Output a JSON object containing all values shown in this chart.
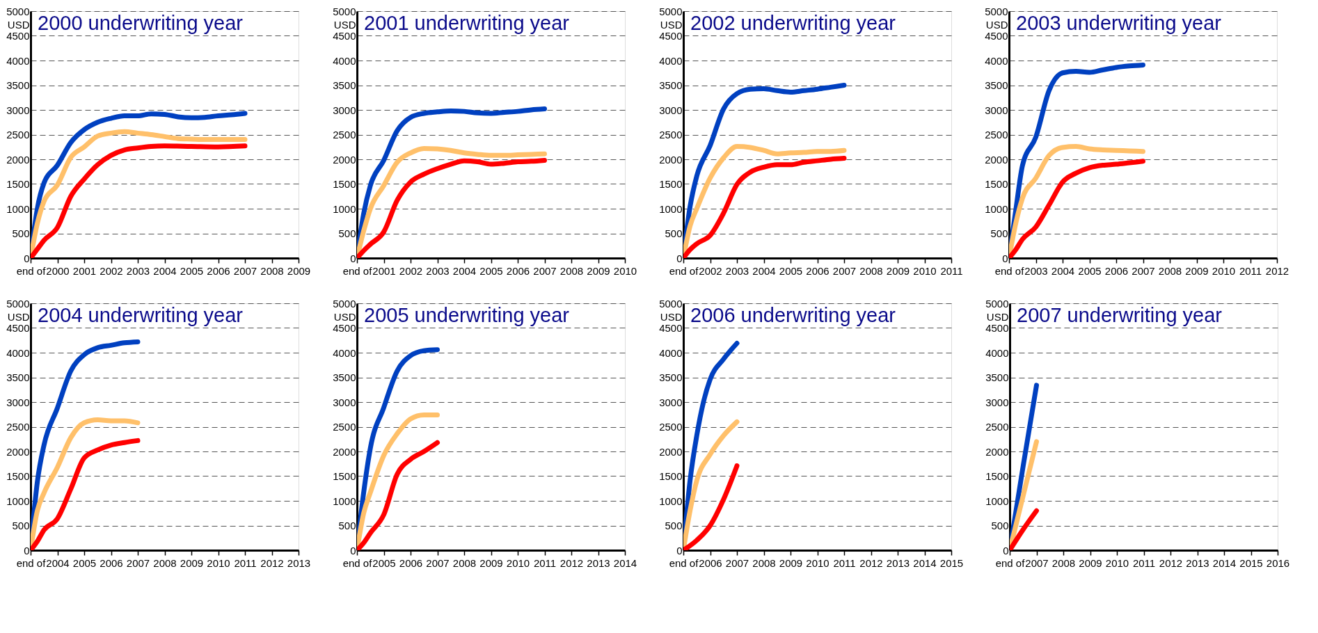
{
  "chart_data": [
    {
      "type": "line",
      "title": "2000 underwriting year",
      "ylabel": "USD",
      "xlim": [
        1999,
        2009
      ],
      "xticks": [
        {
          "value": 1999,
          "label": "end of"
        },
        2000,
        2001,
        2002,
        2003,
        2004,
        2005,
        2006,
        2007,
        2008,
        2009
      ],
      "ylim": [
        0,
        5000
      ],
      "yticks": [
        0,
        500,
        1000,
        1500,
        2000,
        2500,
        3000,
        3500,
        4000,
        4500,
        5000
      ],
      "grid": "y",
      "series": [
        {
          "color": "#0040c0",
          "x": [
            1999,
            1999.25,
            1999.5,
            2000,
            2000.5,
            2001,
            2001.5,
            2002,
            2002.5,
            2003,
            2003.5,
            2004,
            2004.5,
            2005,
            2005.5,
            2006,
            2006.5,
            2007
          ],
          "values": [
            0,
            1000,
            1520,
            1880,
            2340,
            2600,
            2750,
            2830,
            2880,
            2880,
            2920,
            2910,
            2860,
            2840,
            2850,
            2880,
            2900,
            2930
          ]
        },
        {
          "color": "#ffc06a",
          "x": [
            1999,
            1999.25,
            1999.5,
            2000,
            2000.5,
            2001,
            2001.5,
            2002,
            2002.5,
            2003,
            2003.5,
            2004,
            2004.5,
            2005,
            2005.5,
            2006,
            2006.5,
            2007
          ],
          "values": [
            0,
            700,
            1150,
            1480,
            2040,
            2250,
            2470,
            2530,
            2560,
            2530,
            2500,
            2460,
            2420,
            2410,
            2400,
            2400,
            2400,
            2400
          ]
        },
        {
          "color": "#ff0000",
          "x": [
            1999,
            1999.25,
            1999.5,
            2000,
            2000.5,
            2001,
            2001.5,
            2002,
            2002.5,
            2003,
            2003.5,
            2004,
            2005,
            2006,
            2007
          ],
          "values": [
            0,
            180,
            360,
            620,
            1250,
            1600,
            1890,
            2080,
            2190,
            2230,
            2260,
            2270,
            2260,
            2250,
            2270
          ]
        }
      ]
    },
    {
      "type": "line",
      "title": "2001 underwriting year",
      "ylabel": "USD",
      "xlim": [
        2000,
        2010
      ],
      "xticks": [
        {
          "value": 2000,
          "label": "end of"
        },
        2001,
        2002,
        2003,
        2004,
        2005,
        2006,
        2007,
        2008,
        2009,
        2010
      ],
      "ylim": [
        0,
        5000
      ],
      "yticks": [
        0,
        500,
        1000,
        1500,
        2000,
        2500,
        3000,
        3500,
        4000,
        4500,
        5000
      ],
      "grid": "y",
      "series": [
        {
          "color": "#0040c0",
          "x": [
            2000,
            2000.25,
            2000.5,
            2001,
            2001.5,
            2002,
            2002.5,
            2003,
            2003.5,
            2004,
            2004.5,
            2005,
            2005.5,
            2006,
            2006.5,
            2007
          ],
          "values": [
            0,
            900,
            1470,
            1980,
            2580,
            2850,
            2930,
            2960,
            2980,
            2970,
            2940,
            2930,
            2950,
            2970,
            3000,
            3020
          ]
        },
        {
          "color": "#ffc06a",
          "x": [
            2000,
            2000.25,
            2000.5,
            2001,
            2001.5,
            2002,
            2002.5,
            2003,
            2003.5,
            2004,
            2004.5,
            2005,
            2005.5,
            2006,
            2006.5,
            2007
          ],
          "values": [
            0,
            550,
            1000,
            1470,
            1940,
            2130,
            2220,
            2210,
            2180,
            2130,
            2100,
            2080,
            2080,
            2090,
            2100,
            2110
          ]
        },
        {
          "color": "#ff0000",
          "x": [
            2000,
            2000.25,
            2000.5,
            2001,
            2001.5,
            2002,
            2002.5,
            2003,
            2003.5,
            2004,
            2004.5,
            2005,
            2005.5,
            2006,
            2006.5,
            2007
          ],
          "values": [
            0,
            150,
            280,
            530,
            1170,
            1540,
            1700,
            1810,
            1900,
            1970,
            1950,
            1900,
            1920,
            1950,
            1960,
            1980
          ]
        }
      ]
    },
    {
      "type": "line",
      "title": "2002 underwriting year",
      "ylabel": "USD",
      "xlim": [
        2001,
        2011
      ],
      "xticks": [
        {
          "value": 2001,
          "label": "end of"
        },
        2002,
        2003,
        2004,
        2005,
        2006,
        2007,
        2008,
        2009,
        2010,
        2011
      ],
      "ylim": [
        0,
        5000
      ],
      "yticks": [
        0,
        500,
        1000,
        1500,
        2000,
        2500,
        3000,
        3500,
        4000,
        4500,
        5000
      ],
      "grid": "y",
      "series": [
        {
          "color": "#0040c0",
          "x": [
            2001,
            2001.25,
            2001.5,
            2002,
            2002.5,
            2003,
            2003.5,
            2004,
            2004.5,
            2005,
            2005.5,
            2006,
            2006.5,
            2007
          ],
          "values": [
            0,
            1040,
            1660,
            2280,
            3020,
            3330,
            3420,
            3430,
            3390,
            3360,
            3390,
            3420,
            3460,
            3500
          ]
        },
        {
          "color": "#ffc06a",
          "x": [
            2001,
            2001.25,
            2001.5,
            2002,
            2002.5,
            2003,
            2003.5,
            2004,
            2004.5,
            2005,
            2005.5,
            2006,
            2006.5,
            2007
          ],
          "values": [
            0,
            650,
            1000,
            1620,
            2030,
            2260,
            2240,
            2180,
            2110,
            2130,
            2140,
            2160,
            2160,
            2180
          ]
        },
        {
          "color": "#ff0000",
          "x": [
            2001,
            2001.25,
            2001.5,
            2002,
            2002.5,
            2003,
            2003.5,
            2004,
            2004.5,
            2005,
            2005.5,
            2006,
            2006.5,
            2007
          ],
          "values": [
            0,
            170,
            290,
            460,
            910,
            1490,
            1740,
            1840,
            1890,
            1890,
            1940,
            1970,
            2000,
            2020
          ]
        }
      ]
    },
    {
      "type": "line",
      "title": "2003 underwriting year",
      "ylabel": "USD",
      "xlim": [
        2002,
        2012
      ],
      "xticks": [
        {
          "value": 2002,
          "label": "end of"
        },
        2003,
        2004,
        2005,
        2006,
        2007,
        2008,
        2009,
        2010,
        2011,
        2012
      ],
      "ylim": [
        0,
        5000
      ],
      "yticks": [
        0,
        500,
        1000,
        1500,
        2000,
        2500,
        3000,
        3500,
        4000,
        4500,
        5000
      ],
      "grid": "y",
      "series": [
        {
          "color": "#0040c0",
          "x": [
            2002,
            2002.25,
            2002.5,
            2003,
            2003.5,
            2004,
            2004.5,
            2005,
            2005.5,
            2006,
            2006.5,
            2007
          ],
          "values": [
            0,
            960,
            1870,
            2450,
            3400,
            3750,
            3780,
            3760,
            3810,
            3860,
            3890,
            3910
          ]
        },
        {
          "color": "#ffc06a",
          "x": [
            2002,
            2002.25,
            2002.5,
            2003,
            2003.5,
            2004,
            2004.5,
            2005,
            2005.5,
            2006,
            2006.5,
            2007
          ],
          "values": [
            0,
            700,
            1210,
            1620,
            2080,
            2240,
            2260,
            2210,
            2190,
            2180,
            2170,
            2160
          ]
        },
        {
          "color": "#ff0000",
          "x": [
            2002,
            2002.25,
            2002.5,
            2003,
            2003.5,
            2004,
            2004.5,
            2005,
            2005.5,
            2006,
            2006.5,
            2007
          ],
          "values": [
            0,
            170,
            380,
            630,
            1080,
            1540,
            1720,
            1830,
            1880,
            1900,
            1930,
            1960
          ]
        }
      ]
    },
    {
      "type": "line",
      "title": "2004 underwriting year",
      "ylabel": "USD",
      "xlim": [
        2003,
        2013
      ],
      "xticks": [
        {
          "value": 2003,
          "label": "end of"
        },
        2004,
        2005,
        2006,
        2007,
        2008,
        2009,
        2010,
        2011,
        2012,
        2013
      ],
      "ylim": [
        0,
        5000
      ],
      "yticks": [
        0,
        500,
        1000,
        1500,
        2000,
        2500,
        3000,
        3500,
        4000,
        4500,
        5000
      ],
      "grid": "y",
      "series": [
        {
          "color": "#0040c0",
          "x": [
            2003,
            2003.25,
            2003.5,
            2004,
            2004.5,
            2005,
            2005.5,
            2006,
            2006.5,
            2007
          ],
          "values": [
            0,
            1380,
            2130,
            2880,
            3630,
            3960,
            4100,
            4150,
            4200,
            4220
          ]
        },
        {
          "color": "#ffc06a",
          "x": [
            2003,
            2003.25,
            2003.5,
            2004,
            2004.5,
            2005,
            2005.5,
            2006,
            2006.5,
            2007
          ],
          "values": [
            0,
            800,
            1160,
            1680,
            2280,
            2580,
            2640,
            2620,
            2620,
            2580
          ]
        },
        {
          "color": "#ff0000",
          "x": [
            2003,
            2003.25,
            2003.5,
            2004,
            2004.5,
            2005,
            2005.5,
            2006,
            2006.5,
            2007
          ],
          "values": [
            0,
            180,
            410,
            640,
            1240,
            1870,
            2030,
            2130,
            2180,
            2220
          ]
        }
      ]
    },
    {
      "type": "line",
      "title": "2005 underwriting year",
      "ylabel": "USD",
      "xlim": [
        2004,
        2014
      ],
      "xticks": [
        {
          "value": 2004,
          "label": "end of"
        },
        2005,
        2006,
        2007,
        2008,
        2009,
        2010,
        2011,
        2012,
        2013,
        2014
      ],
      "ylim": [
        0,
        5000
      ],
      "yticks": [
        0,
        500,
        1000,
        1500,
        2000,
        2500,
        3000,
        3500,
        4000,
        4500,
        5000
      ],
      "grid": "y",
      "series": [
        {
          "color": "#0040c0",
          "x": [
            2004,
            2004.25,
            2004.5,
            2005,
            2005.5,
            2006,
            2006.5,
            2007
          ],
          "values": [
            0,
            1170,
            2070,
            2890,
            3630,
            3940,
            4040,
            4060
          ]
        },
        {
          "color": "#ffc06a",
          "x": [
            2004,
            2004.25,
            2004.5,
            2005,
            2005.5,
            2006,
            2006.5,
            2007
          ],
          "values": [
            0,
            750,
            1170,
            1920,
            2360,
            2660,
            2740,
            2740
          ]
        },
        {
          "color": "#ff0000",
          "x": [
            2004,
            2004.25,
            2004.5,
            2005,
            2005.5,
            2006,
            2006.5,
            2007
          ],
          "values": [
            0,
            150,
            350,
            720,
            1540,
            1840,
            2000,
            2180
          ]
        }
      ]
    },
    {
      "type": "line",
      "title": "2006 underwriting year",
      "ylabel": "USD",
      "xlim": [
        2005,
        2015
      ],
      "xticks": [
        {
          "value": 2005,
          "label": "end of"
        },
        2006,
        2007,
        2008,
        2009,
        2010,
        2011,
        2012,
        2013,
        2014,
        2015
      ],
      "ylim": [
        0,
        5000
      ],
      "yticks": [
        0,
        500,
        1000,
        1500,
        2000,
        2500,
        3000,
        3500,
        4000,
        4500,
        5000
      ],
      "grid": "y",
      "series": [
        {
          "color": "#0040c0",
          "x": [
            2005,
            2005.25,
            2005.5,
            2005.75,
            2006,
            2006.5,
            2007
          ],
          "values": [
            0,
            1410,
            2320,
            3000,
            3460,
            3870,
            4190
          ]
        },
        {
          "color": "#ffc06a",
          "x": [
            2005,
            2005.25,
            2005.5,
            2006,
            2006.5,
            2007
          ],
          "values": [
            0,
            800,
            1410,
            1940,
            2320,
            2600
          ]
        },
        {
          "color": "#ff0000",
          "x": [
            2005,
            2005.5,
            2006,
            2006.5,
            2007
          ],
          "values": [
            0,
            200,
            500,
            1030,
            1710
          ]
        }
      ]
    },
    {
      "type": "line",
      "title": "2007 underwriting year",
      "ylabel": "USD",
      "xlim": [
        2006,
        2016
      ],
      "xticks": [
        {
          "value": 2006,
          "label": "end of"
        },
        2007,
        2008,
        2009,
        2010,
        2011,
        2012,
        2013,
        2014,
        2015,
        2016
      ],
      "ylim": [
        0,
        5000
      ],
      "yticks": [
        0,
        500,
        1000,
        1500,
        2000,
        2500,
        3000,
        3500,
        4000,
        4500,
        5000
      ],
      "grid": "y",
      "series": [
        {
          "color": "#0040c0",
          "x": [
            2006,
            2006.5,
            2007
          ],
          "values": [
            0,
            1700,
            3340
          ]
        },
        {
          "color": "#ffc06a",
          "x": [
            2006,
            2006.5,
            2007
          ],
          "values": [
            0,
            1100,
            2200
          ]
        },
        {
          "color": "#ff0000",
          "x": [
            2006,
            2006.5,
            2007
          ],
          "values": [
            0,
            420,
            800
          ]
        }
      ]
    }
  ]
}
